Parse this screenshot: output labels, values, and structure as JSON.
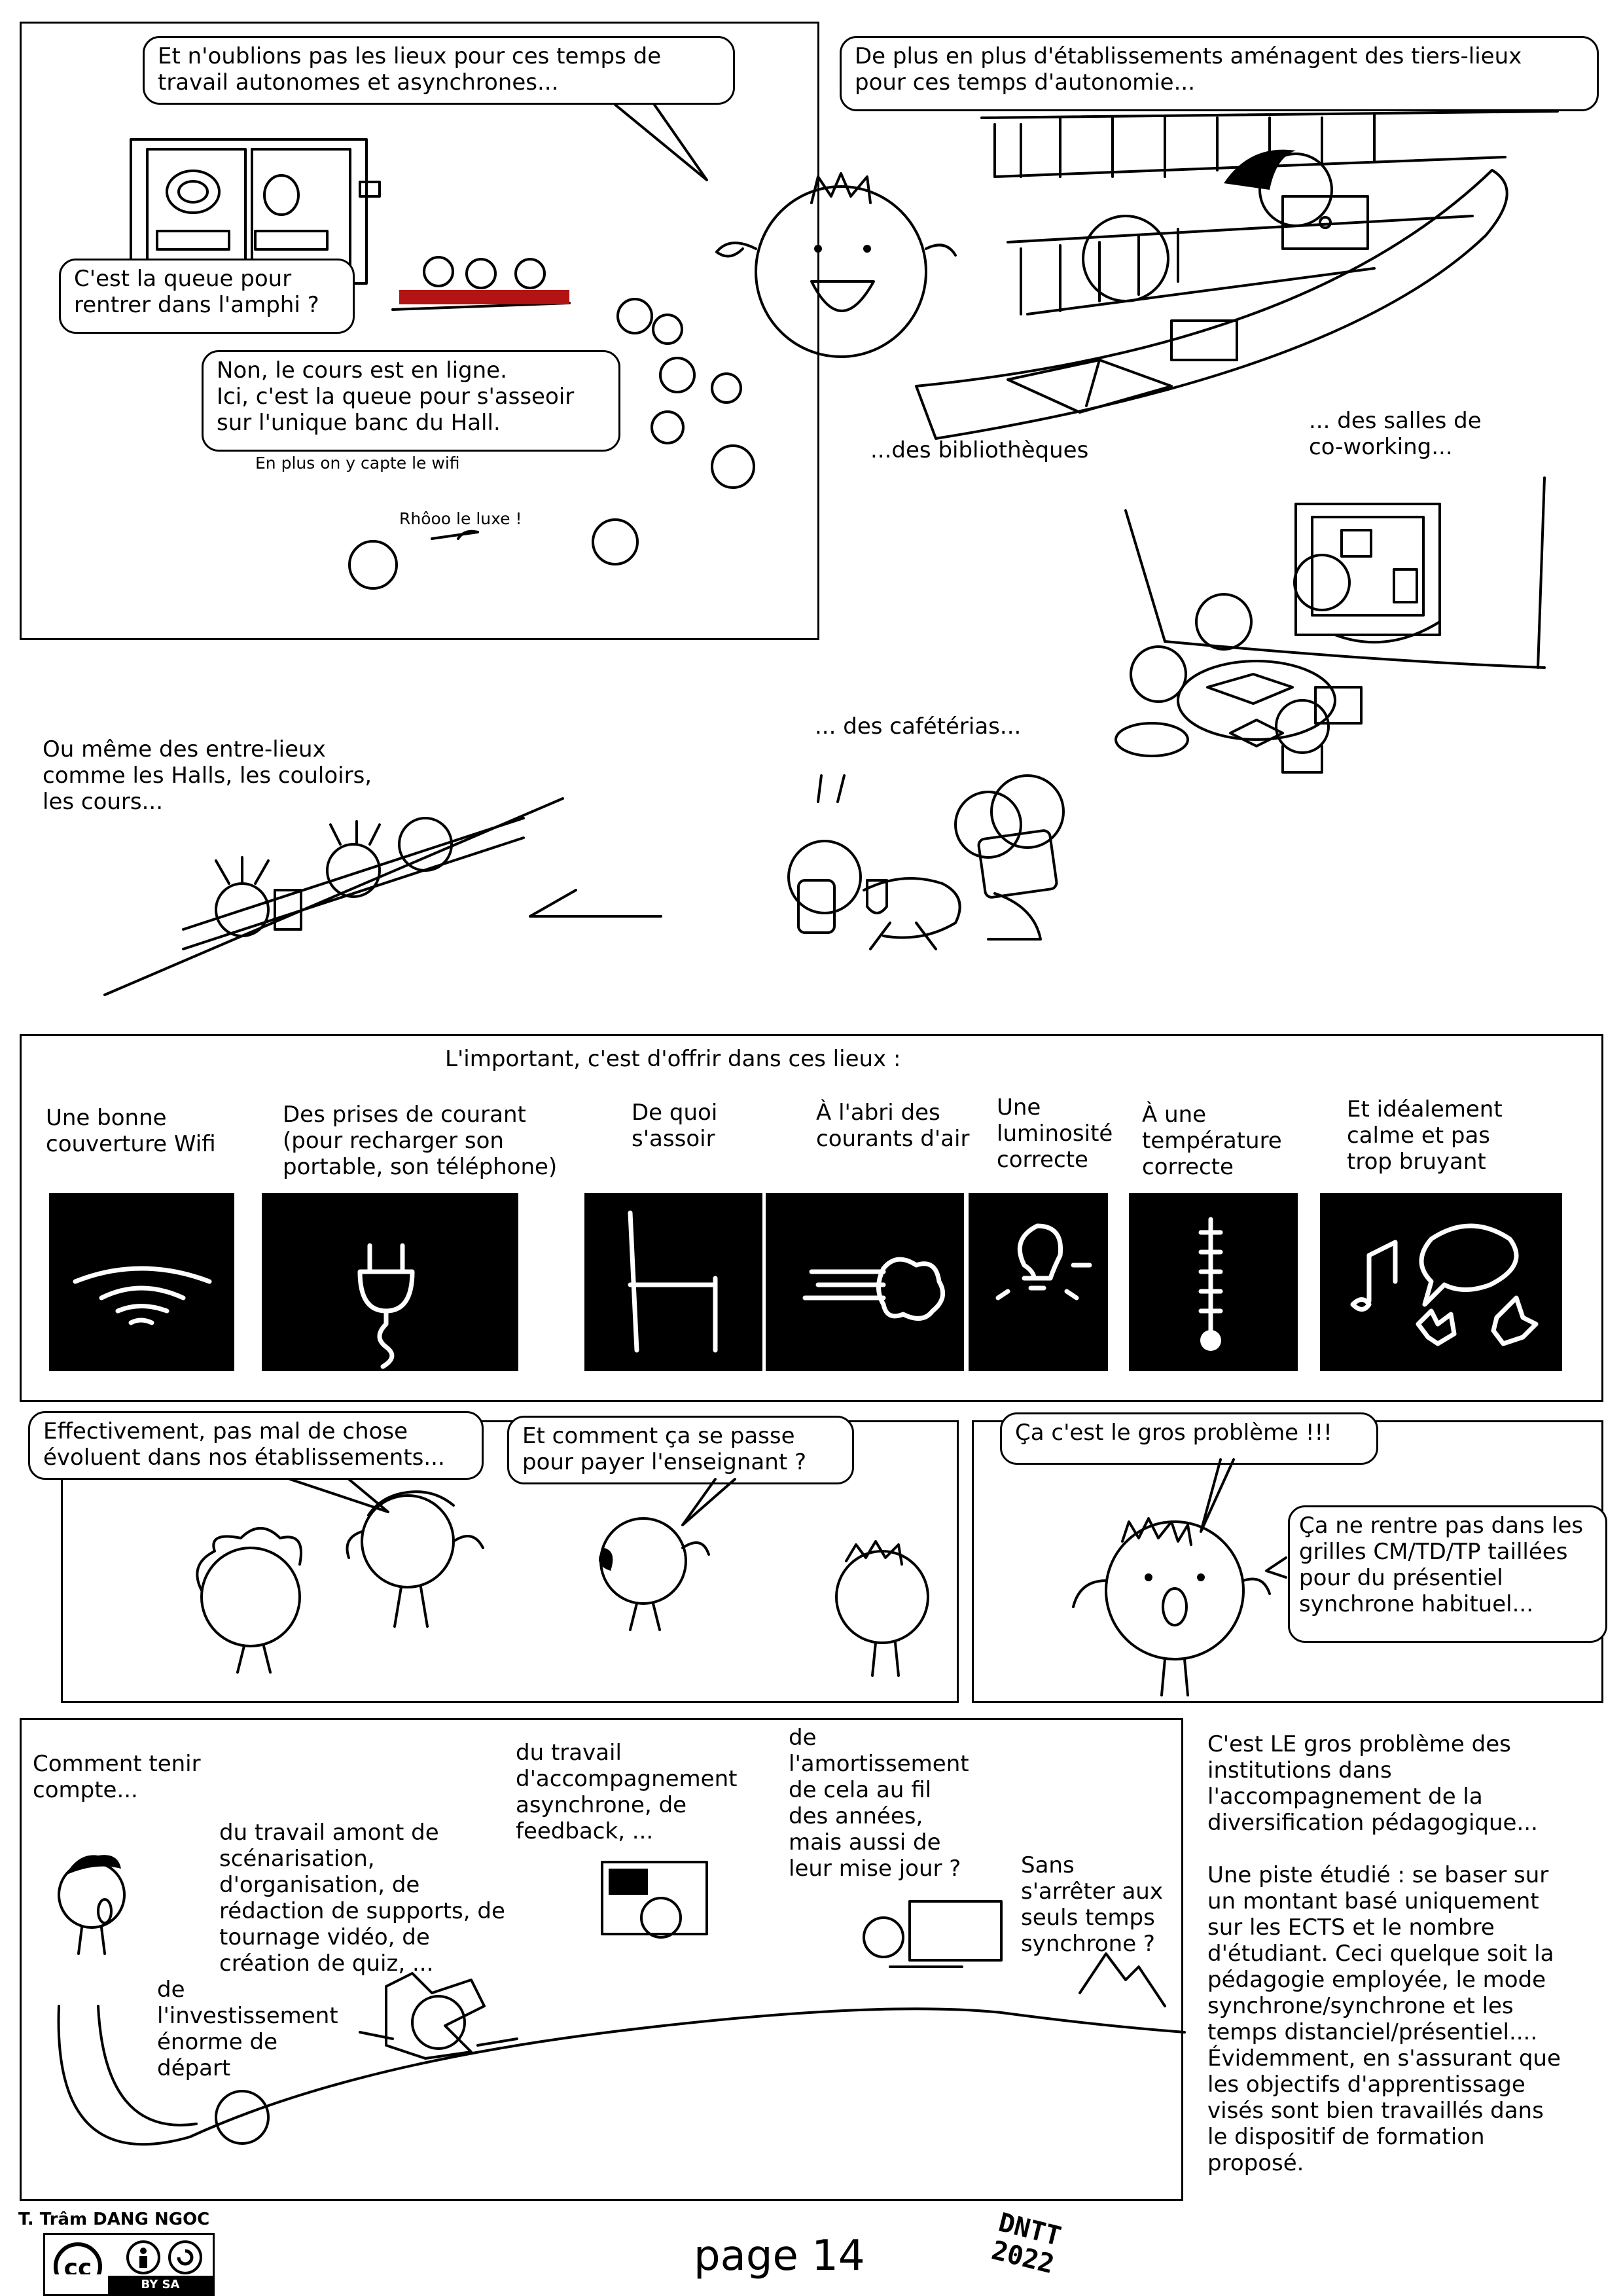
{
  "panel1": {
    "bubble_main": "Et n'oublions pas les lieux pour ces temps de\ntravail autonomes et asynchrones...",
    "bubble_queue_question": "C'est la queue pour\nrentrer dans l'amphi ?",
    "bubble_queue_answer": "Non, le cours est en ligne.\nIci, c'est la queue pour s'asseoir\nsur l'unique banc du Hall.",
    "wifi_note": "En plus on y capte le wifi",
    "luxury_note": "Rhôoo le luxe !"
  },
  "panel2": {
    "bubble": "De plus en plus d'établissements aménagent des tiers-lieux\npour ces temps d'autonomie...",
    "caption_libraries": "...des bibliothèques",
    "caption_coworking": "... des salles de\nco-working...",
    "caption_cafeterias": "... des cafétérias...",
    "caption_between_places": "Ou même des entre-lieux\ncomme les Halls, les couloirs,\nles cours..."
  },
  "panel3": {
    "heading": "L'important, c'est d'offrir dans ces lieux :",
    "items": [
      {
        "label": "Une bonne\ncouverture Wifi",
        "icon": "wifi-icon"
      },
      {
        "label": "Des prises de courant\n(pour recharger son\nportable, son téléphone)",
        "icon": "plug-icon"
      },
      {
        "label": "De quoi\ns'assoir",
        "icon": "chair-icon"
      },
      {
        "label": "À l'abri des\ncourants d'air",
        "icon": "draft-icon"
      },
      {
        "label": "Une\nluminosité\ncorrecte",
        "icon": "lightbulb-icon"
      },
      {
        "label": "À une\ntempérature\ncorrecte",
        "icon": "thermometer-icon"
      },
      {
        "label": "Et idéalement\ncalme et pas\ntrop bruyant",
        "icon": "noise-icon"
      }
    ]
  },
  "panel4": {
    "bubble_left": "Effectivement, pas mal de chose\névoluent dans nos établissements...",
    "bubble_right": "Et comment ça se passe\npour payer l'enseignant ?"
  },
  "panel5": {
    "bubble_top": "Ça c'est le gros problème !!!",
    "bubble_side": "Ça ne rentre pas dans les\ngrilles CM/TD/TP taillées\npour du présentiel\nsynchrone habituel..."
  },
  "panel6": {
    "cap_how": "Comment tenir\ncompte...",
    "cap_upstream": "du travail amont de\nscénarisation,\nd'organisation, de\nrédaction de supports, de\ntournage vidéo, de\ncréation de quiz, ...",
    "cap_investment": "de\nl'investissement\nénorme de\ndépart",
    "cap_async": "du travail\nd'accompagnement\nasynchrone, de\nfeedback, ...",
    "cap_amortization": "de\nl'amortissement\nde cela au fil\ndes années,\nmais aussi de\nleur mise  jour ?",
    "cap_sync": "Sans\ns'arrêter aux\nseuls temps\nsynchrone ?"
  },
  "side_text": {
    "para1": "C'est LE gros problème des\ninstitutions dans\nl'accompagnement de la\ndiversification pédagogique...",
    "para2": "Une piste étudié : se baser sur\nun montant basé uniquement\nsur les ECTS et le nombre\nd'étudiant. Ceci quelque soit la\npédagogie employée, le mode\nsynchrone/synchrone et les\ntemps distanciel/présentiel....\nÉvidemment, en s'assurant que\nles objectifs d'apprentissage\nvisés sont bien travaillés dans\nle dispositif de formation\nproposé."
  },
  "footer": {
    "author": "T. Trâm DANG NGOC",
    "license": "BY  SA",
    "page": "page 14",
    "signature": "DNTT\n2022"
  }
}
